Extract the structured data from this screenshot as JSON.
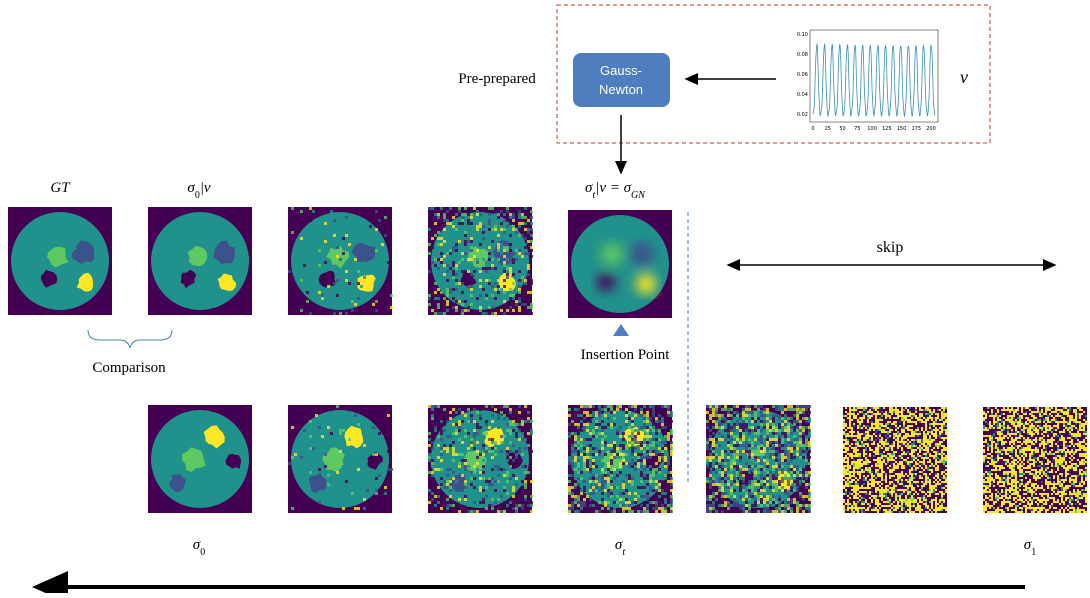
{
  "top_box": {
    "pre_prepared": "Pre-prepared",
    "gauss_newton": [
      "Gauss-",
      "Newton"
    ],
    "nu": "ν",
    "plot": {
      "yticks": [
        "0.10",
        "0.08",
        "0.06",
        "0.04",
        "0.02"
      ],
      "xticks": [
        "0",
        "25",
        "50",
        "75",
        "100",
        "125",
        "150",
        "175",
        "200"
      ]
    }
  },
  "labels": {
    "gt": [
      {
        "text": "GT",
        "italic": true
      }
    ],
    "sigma0_v": [
      {
        "text": "σ",
        "italic": true
      },
      {
        "text": "0",
        "sub": true
      },
      {
        "text": "|ν",
        "italic": true
      }
    ],
    "sigmat_v": [
      {
        "text": "σ",
        "italic": true
      },
      {
        "text": "t",
        "sub": true,
        "italic": true
      },
      {
        "text": "|ν = σ",
        "italic": true
      },
      {
        "text": "GN",
        "sub": true,
        "italic": true
      }
    ],
    "skip": "skip",
    "comparison": "Comparison",
    "insertion_point": "Insertion Point",
    "sigma0": [
      {
        "text": "σ",
        "italic": true
      },
      {
        "text": "0",
        "sub": true
      }
    ],
    "sigmat": [
      {
        "text": "σ",
        "italic": true
      },
      {
        "text": "t",
        "sub": true,
        "italic": true
      }
    ],
    "sigma1": [
      {
        "text": "σ",
        "italic": true
      },
      {
        "text": "1",
        "sub": true
      }
    ]
  }
}
